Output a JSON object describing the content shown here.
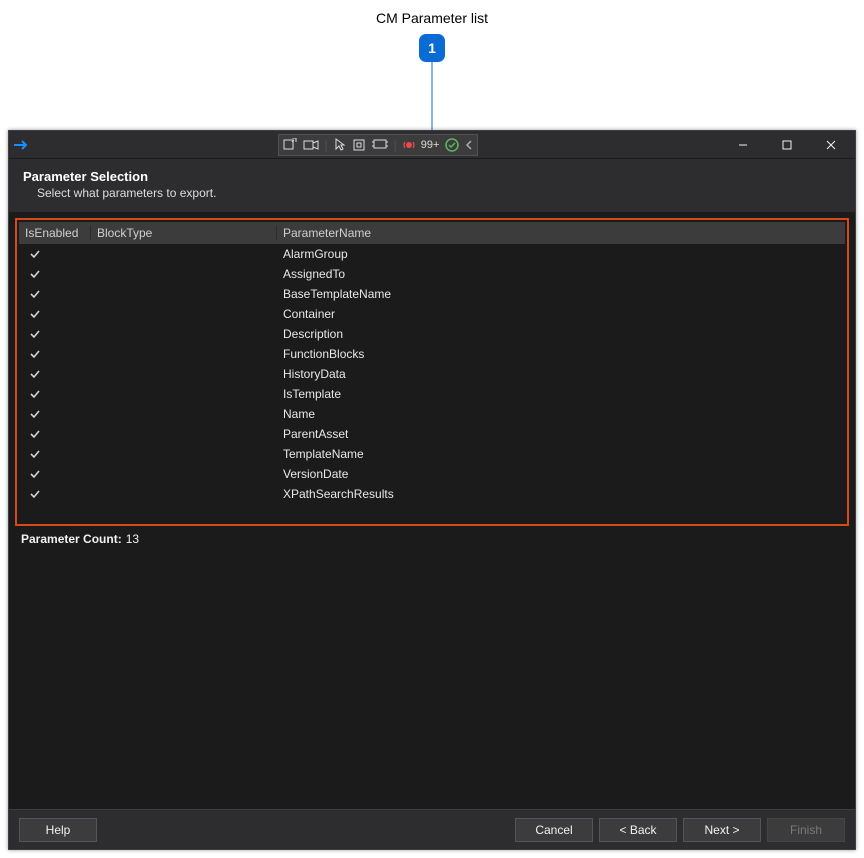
{
  "annotation": {
    "label": "CM Parameter list",
    "number": "1"
  },
  "titlebar": {
    "notif_badge": "99+"
  },
  "header": {
    "title": "Parameter Selection",
    "subtitle": "Select what parameters to export."
  },
  "grid": {
    "headers": {
      "enabled": "IsEnabled",
      "blocktype": "BlockType",
      "paramname": "ParameterName"
    },
    "rows": [
      {
        "enabled": true,
        "blocktype": "",
        "param": "AlarmGroup"
      },
      {
        "enabled": true,
        "blocktype": "",
        "param": "AssignedTo"
      },
      {
        "enabled": true,
        "blocktype": "",
        "param": "BaseTemplateName"
      },
      {
        "enabled": true,
        "blocktype": "",
        "param": "Container"
      },
      {
        "enabled": true,
        "blocktype": "",
        "param": "Description"
      },
      {
        "enabled": true,
        "blocktype": "",
        "param": "FunctionBlocks"
      },
      {
        "enabled": true,
        "blocktype": "",
        "param": "HistoryData"
      },
      {
        "enabled": true,
        "blocktype": "",
        "param": "IsTemplate"
      },
      {
        "enabled": true,
        "blocktype": "",
        "param": "Name"
      },
      {
        "enabled": true,
        "blocktype": "",
        "param": "ParentAsset"
      },
      {
        "enabled": true,
        "blocktype": "",
        "param": "TemplateName"
      },
      {
        "enabled": true,
        "blocktype": "",
        "param": "VersionDate"
      },
      {
        "enabled": true,
        "blocktype": "",
        "param": "XPathSearchResults"
      }
    ]
  },
  "count": {
    "label": "Parameter Count:",
    "value": "13"
  },
  "footer": {
    "help": "Help",
    "cancel": "Cancel",
    "back": "< Back",
    "next": "Next >",
    "finish": "Finish"
  },
  "colors": {
    "callout": "#0b6bd4",
    "highlight_border": "#d64a17",
    "dialog_bg": "#2d2d30",
    "content_bg": "#1b1b1c",
    "header_row_bg": "#3c3c3c"
  }
}
